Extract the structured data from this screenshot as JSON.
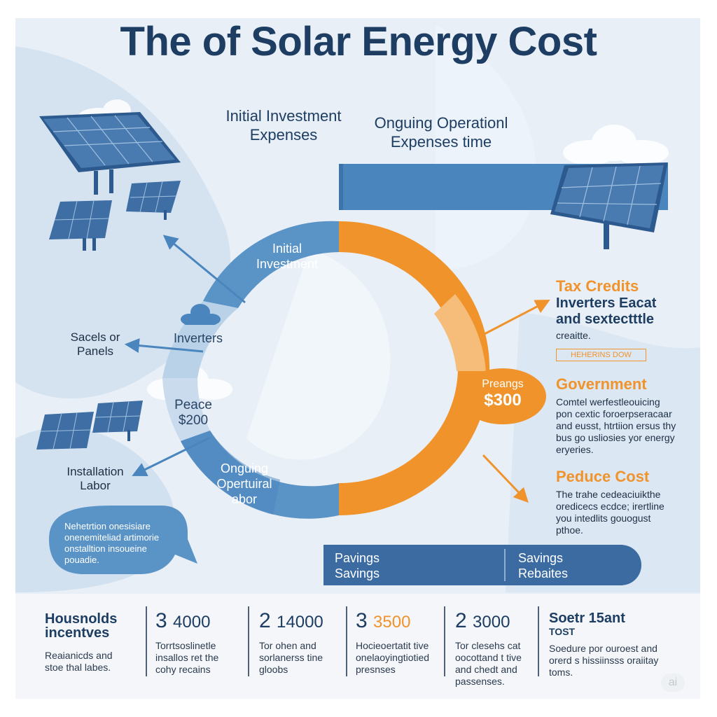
{
  "title": "The of Solar Energy Cost",
  "headers": {
    "initial": [
      "Initial Investment",
      "Expenses"
    ],
    "ongoing": [
      "Onguing Operationl",
      "Expenses time"
    ]
  },
  "ring": {
    "initial": [
      "Initial",
      "Investment"
    ],
    "inverters": "Inverters",
    "peace": [
      "Peace",
      "$200"
    ],
    "ongoing": [
      "Onguing",
      "Opertuiral",
      "abor"
    ],
    "center": [
      "Preangs",
      "$300"
    ]
  },
  "left_labels": {
    "panels": [
      "Sacels or",
      "Panels"
    ],
    "installation": [
      "Installation",
      "Labor"
    ]
  },
  "bubble_text": [
    "Nehetrtion onesisiare",
    "onenemiteliad artimorie",
    "onstalltion insoueine",
    "pouadie."
  ],
  "right": {
    "tax": {
      "heading": "Tax Credits",
      "sub": [
        "Inverters Eacat",
        "and sextectttle"
      ],
      "body": "creaitte.",
      "tag": "HEHERINS DOW"
    },
    "government": {
      "heading": "Government",
      "body": [
        "Comtel werfestleouicing",
        "pon cextic foroerpseracaar",
        "and eusst, htrtiion ersus thy",
        "bus go usliosies yor energy",
        "eryeries."
      ]
    },
    "reduce": {
      "heading": "Peduce Cost",
      "body": [
        "The trahe cedeaciuikthe",
        "oredicecs ecdce; irertline",
        "you intedlits gouogust",
        "pthoe."
      ]
    }
  },
  "savings_bar": {
    "left": [
      "Pavings",
      "Savings"
    ],
    "right": [
      "Savings",
      "Rebaites"
    ]
  },
  "bottom": {
    "first": {
      "title": [
        "Housnolds",
        "incentves"
      ],
      "body": [
        "Reaianicds and",
        "stoe thal labes."
      ]
    },
    "stats": [
      {
        "rank": "3",
        "value": "4000",
        "value_highlight": false,
        "body": [
          "Torrtsoslinetle",
          "insallos ret the",
          "cohy recains"
        ]
      },
      {
        "rank": "2",
        "value": "14000",
        "value_highlight": false,
        "body": [
          "Tor ohen and",
          "sorlanerss tine",
          "gloobs"
        ]
      },
      {
        "rank": "3",
        "value": "3500",
        "value_highlight": true,
        "body": [
          "Hocieoertatit tive",
          "onelaoyingtiotied",
          "presnses"
        ]
      },
      {
        "rank": "2",
        "value": "3000",
        "value_highlight": false,
        "body": [
          "Tor clesehs cat",
          "oocottand t tive",
          "and chedt and",
          "passenses."
        ]
      }
    ],
    "last": {
      "title": "Soetr 15ant",
      "sub": "TOST",
      "body": [
        "Soedure por ouroest and",
        "orerd s hissiinsss oraiitay",
        "toms."
      ]
    }
  },
  "watermark": "ai",
  "colors": {
    "navy": "#1d3d62",
    "blue": "#4a86bd",
    "light_blue": "#b5cfe6",
    "orange": "#f0932b",
    "light_orange": "#f6bd7a",
    "savings_bar": "#3b6ba0"
  },
  "icons": [
    "solar-panel-icon",
    "cloud-icon"
  ]
}
